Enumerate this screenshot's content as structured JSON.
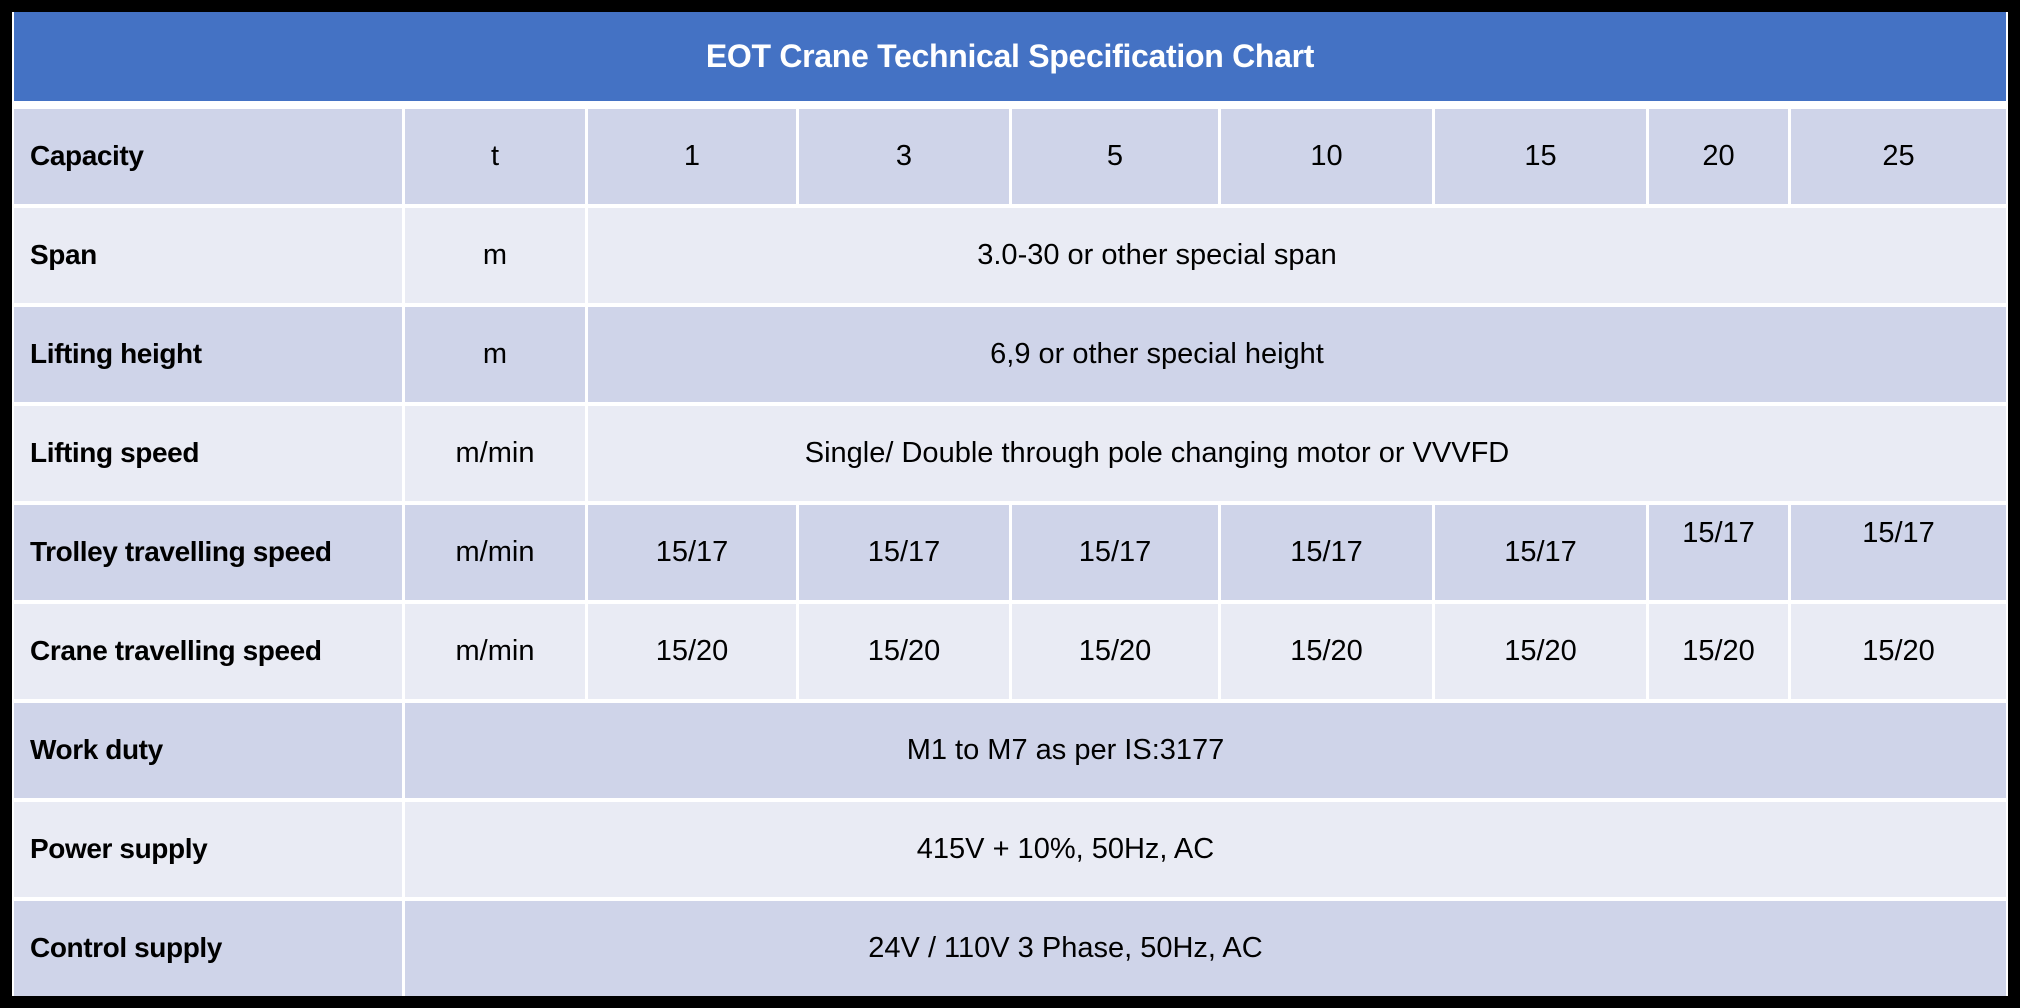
{
  "title": "EOT Crane Technical Specification Chart",
  "colors": {
    "header_bg": "#4472C4",
    "header_text": "#FFFFFF",
    "band_dark": "#CFD4E9",
    "band_light": "#E9EBF4",
    "gutter": "#FFFFFF",
    "frame": "#000000",
    "body_text": "#000000"
  },
  "table": {
    "rows": [
      {
        "label": "Capacity",
        "unit": "t",
        "values": [
          "1",
          "3",
          "5",
          "10",
          "15",
          "20",
          "25"
        ]
      },
      {
        "label": "Span",
        "unit": "m",
        "merged": "3.0-30 or other special span"
      },
      {
        "label": "Lifting height",
        "unit": "m",
        "merged": "6,9 or other special height"
      },
      {
        "label": "Lifting speed",
        "unit": "m/min",
        "merged": "Single/ Double through pole changing motor or VVVFD"
      },
      {
        "label": "Trolley travelling speed",
        "unit": "m/min",
        "values": [
          "15/17",
          "15/17",
          "15/17",
          "15/17",
          "15/17",
          "15/17",
          "15/17"
        ]
      },
      {
        "label": "Crane travelling speed",
        "unit": "m/min",
        "values": [
          "15/20",
          "15/20",
          "15/20",
          "15/20",
          "15/20",
          "15/20",
          "15/20"
        ]
      },
      {
        "label": "Work duty",
        "merged": "M1 to M7 as per IS:3177"
      },
      {
        "label": "Power supply",
        "merged": "415V + 10%, 50Hz, AC"
      },
      {
        "label": "Control supply",
        "merged": "24V / 110V 3 Phase, 50Hz, AC"
      }
    ]
  }
}
